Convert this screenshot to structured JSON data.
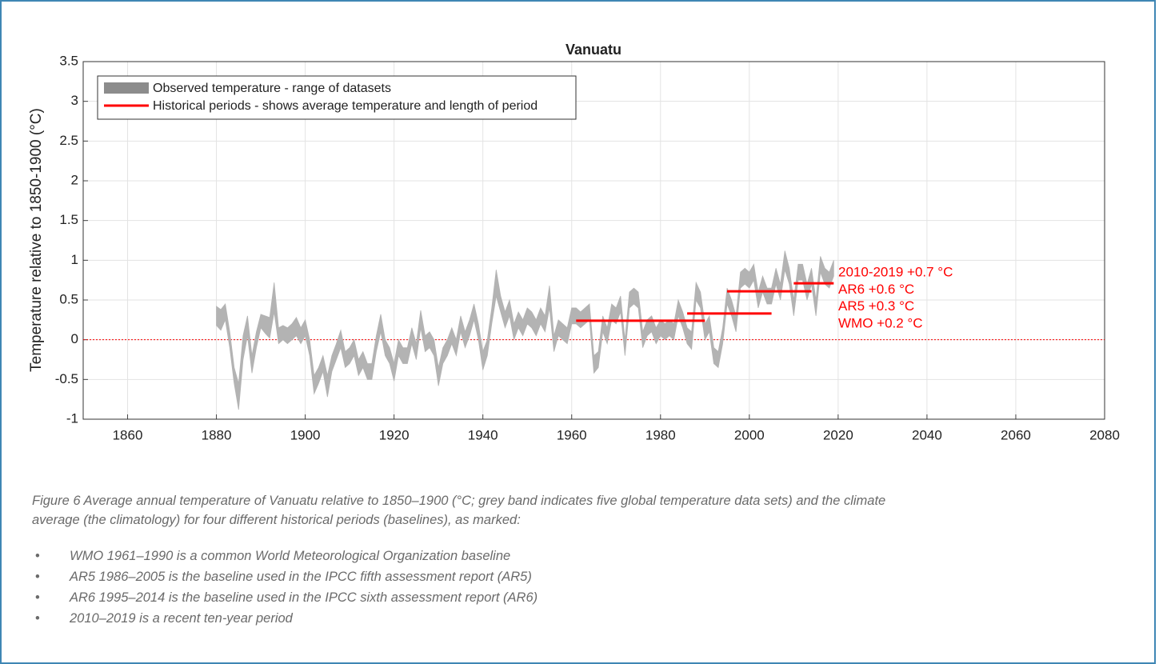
{
  "chart_data": {
    "type": "band",
    "title": "Vanuatu",
    "y_label": "Temperature relative to 1850-1900 (°C)",
    "xlim": [
      1850,
      2080
    ],
    "xticks": [
      1860,
      1880,
      1900,
      1920,
      1940,
      1960,
      1980,
      2000,
      2020,
      2040,
      2060,
      2080
    ],
    "ylim": [
      -1,
      3.5
    ],
    "yticks": [
      -1,
      -0.5,
      0,
      0.5,
      1,
      1.5,
      2,
      2.5,
      3,
      3.5
    ],
    "grid": true,
    "legend": "upper left",
    "reference_line": 0,
    "reference_color": "#ff0000",
    "x": [
      1880,
      1881,
      1882,
      1883,
      1884,
      1885,
      1886,
      1887,
      1888,
      1889,
      1890,
      1891,
      1892,
      1893,
      1894,
      1895,
      1896,
      1897,
      1898,
      1899,
      1900,
      1901,
      1902,
      1903,
      1904,
      1905,
      1906,
      1907,
      1908,
      1909,
      1910,
      1911,
      1912,
      1913,
      1914,
      1915,
      1916,
      1917,
      1918,
      1919,
      1920,
      1921,
      1922,
      1923,
      1924,
      1925,
      1926,
      1927,
      1928,
      1929,
      1930,
      1931,
      1932,
      1933,
      1934,
      1935,
      1936,
      1937,
      1938,
      1939,
      1940,
      1941,
      1942,
      1943,
      1944,
      1945,
      1946,
      1947,
      1948,
      1949,
      1950,
      1951,
      1952,
      1953,
      1954,
      1955,
      1956,
      1957,
      1958,
      1959,
      1960,
      1961,
      1962,
      1963,
      1964,
      1965,
      1966,
      1967,
      1968,
      1969,
      1970,
      1971,
      1972,
      1973,
      1974,
      1975,
      1976,
      1977,
      1978,
      1979,
      1980,
      1981,
      1982,
      1983,
      1984,
      1985,
      1986,
      1987,
      1988,
      1989,
      1990,
      1991,
      1992,
      1993,
      1994,
      1995,
      1996,
      1997,
      1998,
      1999,
      2000,
      2001,
      2002,
      2003,
      2004,
      2005,
      2006,
      2007,
      2008,
      2009,
      2010,
      2011,
      2012,
      2013,
      2014,
      2015,
      2016,
      2017,
      2018,
      2019
    ],
    "series": [
      {
        "name": "Observed temperature - range of datasets",
        "color": "#b3b3b3",
        "lower": [
          0.18,
          0.12,
          0.25,
          -0.1,
          -0.55,
          -0.88,
          -0.25,
          0.05,
          -0.42,
          -0.1,
          0.15,
          0.08,
          0.02,
          0.35,
          -0.05,
          0.0,
          -0.05,
          0.0,
          0.05,
          -0.05,
          0.05,
          -0.2,
          -0.68,
          -0.55,
          -0.4,
          -0.72,
          -0.4,
          -0.25,
          -0.1,
          -0.35,
          -0.3,
          -0.2,
          -0.45,
          -0.35,
          -0.5,
          -0.5,
          -0.15,
          0.1,
          -0.2,
          -0.3,
          -0.52,
          -0.2,
          -0.3,
          -0.3,
          -0.05,
          -0.25,
          0.15,
          -0.15,
          -0.1,
          -0.2,
          -0.58,
          -0.3,
          -0.2,
          -0.05,
          -0.2,
          0.1,
          -0.1,
          0.05,
          0.25,
          0.0,
          -0.38,
          -0.2,
          0.2,
          0.55,
          0.35,
          0.15,
          0.3,
          0.0,
          0.15,
          0.05,
          0.2,
          0.15,
          0.05,
          0.2,
          0.1,
          0.4,
          -0.15,
          0.05,
          0.0,
          -0.05,
          0.2,
          0.2,
          0.15,
          0.2,
          0.25,
          -0.42,
          -0.35,
          0.1,
          -0.05,
          0.25,
          0.2,
          0.35,
          -0.2,
          0.4,
          0.45,
          0.4,
          -0.1,
          0.05,
          0.1,
          -0.05,
          0.05,
          0.0,
          0.05,
          0.0,
          0.3,
          0.15,
          -0.05,
          -0.12,
          0.5,
          0.4,
          0.0,
          0.1,
          -0.3,
          -0.35,
          -0.05,
          0.45,
          0.3,
          0.1,
          0.65,
          0.7,
          0.65,
          0.75,
          0.4,
          0.6,
          0.45,
          0.45,
          0.7,
          0.5,
          0.88,
          0.7,
          0.3,
          0.75,
          0.75,
          0.5,
          0.7,
          0.3,
          0.85,
          0.7,
          0.65,
          0.8
        ],
        "upper": [
          0.42,
          0.38,
          0.45,
          0.1,
          -0.35,
          -0.55,
          0.05,
          0.3,
          -0.2,
          0.1,
          0.32,
          0.3,
          0.28,
          0.72,
          0.15,
          0.18,
          0.15,
          0.2,
          0.28,
          0.15,
          0.25,
          0.0,
          -0.45,
          -0.35,
          -0.2,
          -0.45,
          -0.2,
          -0.05,
          0.12,
          -0.15,
          -0.1,
          0.0,
          -0.25,
          -0.15,
          -0.3,
          -0.3,
          0.05,
          0.32,
          0.0,
          -0.1,
          -0.3,
          0.0,
          -0.1,
          -0.1,
          0.15,
          -0.05,
          0.37,
          0.05,
          0.1,
          0.0,
          -0.35,
          -0.1,
          0.0,
          0.15,
          0.0,
          0.3,
          0.1,
          0.25,
          0.45,
          0.2,
          -0.15,
          0.0,
          0.4,
          0.88,
          0.55,
          0.35,
          0.5,
          0.2,
          0.35,
          0.25,
          0.4,
          0.35,
          0.25,
          0.4,
          0.3,
          0.68,
          0.05,
          0.25,
          0.2,
          0.15,
          0.4,
          0.4,
          0.35,
          0.4,
          0.45,
          -0.2,
          -0.15,
          0.3,
          0.15,
          0.45,
          0.4,
          0.55,
          0.0,
          0.6,
          0.65,
          0.6,
          0.1,
          0.25,
          0.3,
          0.15,
          0.25,
          0.2,
          0.25,
          0.2,
          0.5,
          0.35,
          0.15,
          0.1,
          0.72,
          0.6,
          0.2,
          0.3,
          -0.1,
          -0.15,
          0.15,
          0.65,
          0.5,
          0.3,
          0.85,
          0.9,
          0.85,
          0.95,
          0.6,
          0.8,
          0.65,
          0.65,
          0.9,
          0.7,
          1.12,
          0.9,
          0.5,
          0.95,
          0.95,
          0.7,
          0.9,
          0.5,
          1.05,
          0.9,
          0.85,
          1.0
        ]
      },
      {
        "name": "Historical periods - shows average temperature and length of period",
        "color": "#ff0000",
        "periods": [
          {
            "label": "WMO +0.2 °C",
            "start": 1961,
            "end": 1990,
            "value": 0.24
          },
          {
            "label": "AR5 +0.3 °C",
            "start": 1986,
            "end": 2005,
            "value": 0.33
          },
          {
            "label": "AR6 +0.6 °C",
            "start": 1995,
            "end": 2014,
            "value": 0.61
          },
          {
            "label": "2010-2019 +0.7 °C",
            "start": 2010,
            "end": 2019,
            "value": 0.71
          }
        ]
      }
    ]
  },
  "caption": "Figure 6 Average annual temperature of Vanuatu relative to 1850–1900 (°C; grey band indicates five global temperature data sets) and the climate average (the climatology) for four different historical periods (baselines), as marked:",
  "bullets": [
    "WMO 1961–1990 is a common World Meteorological Organization baseline",
    "AR5 1986–2005 is the baseline used in the IPCC fifth assessment report (AR5)",
    "AR6 1995–2014 is the baseline used in the IPCC sixth assessment report (AR6)",
    "2010–2019 is a recent ten-year period"
  ]
}
